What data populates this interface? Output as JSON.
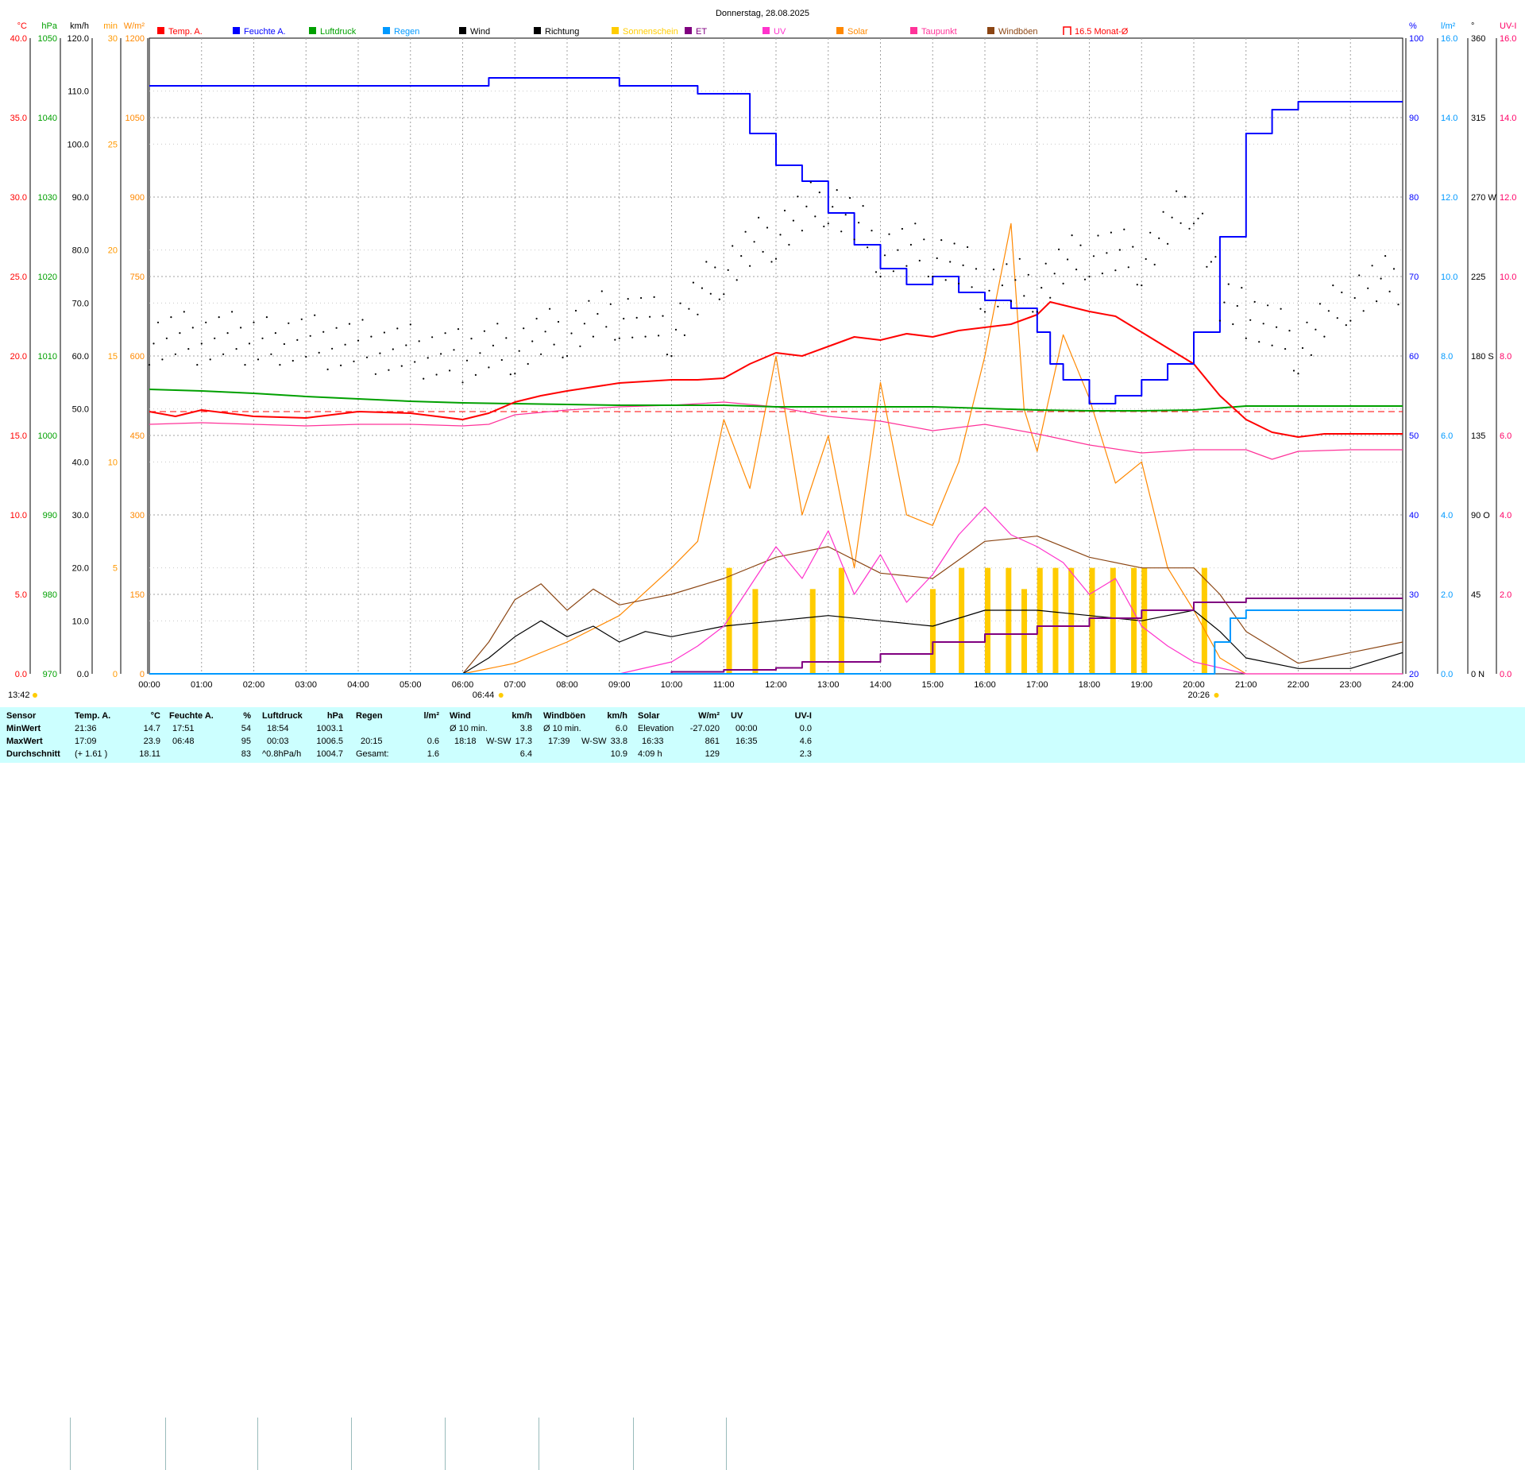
{
  "title": "Donnerstag, 28.08.2025",
  "colors": {
    "temp": "#ff0000",
    "humidity": "#0000ff",
    "pressure": "#00a000",
    "rain": "#0099ff",
    "wind": "#000000",
    "direction": "#000000",
    "sunshine": "#ffcc00",
    "et": "#800080",
    "uv": "#ff33cc",
    "solar": "#ff8800",
    "dewpoint": "#ff3399",
    "gusts": "#8b4513",
    "month_avg": "#ff0000",
    "grid": "#a0a0a0",
    "stats_bg": "#ccffff"
  },
  "legend": [
    {
      "label": "Temp. A.",
      "color": "#ff0000"
    },
    {
      "label": "Feuchte A.",
      "color": "#0000ff"
    },
    {
      "label": "Luftdruck",
      "color": "#00a000"
    },
    {
      "label": "Regen",
      "color": "#0099ff"
    },
    {
      "label": "Wind",
      "color": "#000000"
    },
    {
      "label": "Richtung",
      "color": "#000000"
    },
    {
      "label": "Sonnenschein",
      "color": "#ffcc00"
    },
    {
      "label": "ET",
      "color": "#800080"
    },
    {
      "label": "UV",
      "color": "#ff33cc"
    },
    {
      "label": "Solar",
      "color": "#ff8800"
    },
    {
      "label": "Taupunkt",
      "color": "#ff3399"
    },
    {
      "label": "Windböen",
      "color": "#8b4513"
    },
    {
      "label": "16.5 Monat-Ø",
      "color": "#ff0000"
    }
  ],
  "axes_left": [
    {
      "unit": "°C",
      "color": "#ff0000",
      "ticks": [
        "0.0",
        "5.0",
        "10.0",
        "15.0",
        "20.0",
        "25.0",
        "30.0",
        "35.0",
        "40.0"
      ]
    },
    {
      "unit": "hPa",
      "color": "#00a000",
      "ticks": [
        "970",
        "980",
        "990",
        "1000",
        "1010",
        "1020",
        "1030",
        "1040",
        "1050"
      ]
    },
    {
      "unit": "km/h",
      "color": "#000000",
      "ticks": [
        "0.0",
        "10.0",
        "20.0",
        "30.0",
        "40.0",
        "50.0",
        "60.0",
        "70.0",
        "80.0",
        "90.0",
        "100.0",
        "110.0",
        "120.0"
      ]
    },
    {
      "unit": "min",
      "color": "#ff9900",
      "ticks": [
        "0",
        "5",
        "10",
        "15",
        "20",
        "25",
        "30"
      ]
    },
    {
      "unit": "W/m²",
      "color": "#ff8800",
      "ticks": [
        "0",
        "150",
        "300",
        "450",
        "600",
        "750",
        "900",
        "1050",
        "1200"
      ]
    }
  ],
  "axes_right": [
    {
      "unit": "%",
      "color": "#0000ff",
      "ticks": [
        "20",
        "30",
        "40",
        "50",
        "60",
        "70",
        "80",
        "90",
        "100"
      ]
    },
    {
      "unit": "l/m²",
      "color": "#0099ff",
      "ticks": [
        "0.0",
        "2.0",
        "4.0",
        "6.0",
        "8.0",
        "10.0",
        "12.0",
        "14.0",
        "16.0"
      ]
    },
    {
      "unit": "°",
      "color": "#000000",
      "ticks": [
        "0  N",
        "45",
        "90  O",
        "135",
        "180  S",
        "225",
        "270  W",
        "315",
        "360"
      ]
    },
    {
      "unit": "UV-I",
      "color": "#ff0066",
      "ticks": [
        "0.0",
        "2.0",
        "4.0",
        "6.0",
        "8.0",
        "10.0",
        "12.0",
        "14.0",
        "16.0"
      ]
    }
  ],
  "x_ticks": [
    "00:00",
    "01:00",
    "02:00",
    "03:00",
    "04:00",
    "05:00",
    "06:00",
    "07:00",
    "08:00",
    "09:00",
    "10:00",
    "11:00",
    "12:00",
    "13:00",
    "14:00",
    "15:00",
    "16:00",
    "17:00",
    "18:00",
    "19:00",
    "20:00",
    "21:00",
    "22:00",
    "23:00",
    "24:00"
  ],
  "markers": {
    "sunrise": "06:44",
    "sunset": "20:26",
    "noon": "13:42"
  },
  "chart_data": {
    "type": "line",
    "title": "Donnerstag, 28.08.2025",
    "x_unit": "hour",
    "month_avg_temp": 16.5,
    "series": [
      {
        "name": "Temp. A.",
        "unit": "°C",
        "x": [
          0,
          0.5,
          1,
          2,
          3,
          4,
          5,
          6,
          6.5,
          7,
          7.5,
          8,
          9,
          10,
          10.5,
          11,
          11.5,
          12,
          12.5,
          13,
          13.5,
          14,
          14.5,
          15,
          15.5,
          16,
          16.5,
          17,
          17.25,
          17.5,
          18,
          18.5,
          19,
          19.5,
          20,
          20.5,
          21,
          21.5,
          22,
          22.5,
          23,
          24
        ],
        "y": [
          16.5,
          16.2,
          16.6,
          16.2,
          16.1,
          16.5,
          16.4,
          16.0,
          16.4,
          17.1,
          17.5,
          17.8,
          18.3,
          18.5,
          18.5,
          18.6,
          19.5,
          20.2,
          20.0,
          20.6,
          21.2,
          21.0,
          21.4,
          21.2,
          21.6,
          21.8,
          22.0,
          22.6,
          23.4,
          23.2,
          22.8,
          22.5,
          21.5,
          20.5,
          19.5,
          17.5,
          16.0,
          15.2,
          14.9,
          15.1,
          15.1,
          15.1
        ]
      },
      {
        "name": "Feuchte A.",
        "unit": "%",
        "x": [
          0,
          0.5,
          1,
          2,
          3,
          4,
          5,
          6,
          6.5,
          7,
          8,
          9,
          10,
          10.5,
          11,
          11.5,
          12,
          12.5,
          13,
          13.5,
          14,
          14.5,
          15,
          15.5,
          16,
          16.5,
          17,
          17.25,
          17.5,
          18,
          18.5,
          19,
          19.5,
          20,
          20.5,
          21,
          21.5,
          22,
          23,
          24
        ],
        "y": [
          94,
          94,
          94,
          94,
          94,
          94,
          94,
          94,
          95,
          95,
          95,
          94,
          94,
          93,
          93,
          88,
          84,
          82,
          78,
          74,
          71,
          69,
          70,
          68,
          67,
          66,
          63,
          59,
          57,
          54,
          55,
          57,
          59,
          63,
          75,
          88,
          91,
          92,
          92,
          92
        ]
      },
      {
        "name": "Luftdruck",
        "unit": "hPa",
        "x": [
          0,
          1,
          2,
          3,
          4,
          5,
          6,
          7,
          8,
          9,
          10,
          11,
          12,
          13,
          14,
          15,
          16,
          17,
          18,
          19,
          20,
          21,
          22,
          23,
          24
        ],
        "y": [
          1005.8,
          1005.6,
          1005.3,
          1004.9,
          1004.6,
          1004.3,
          1004.1,
          1004.0,
          1003.9,
          1003.8,
          1003.8,
          1003.8,
          1003.6,
          1003.6,
          1003.6,
          1003.6,
          1003.4,
          1003.2,
          1003.1,
          1003.1,
          1003.2,
          1003.7,
          1003.7,
          1003.7,
          1003.7
        ]
      },
      {
        "name": "Taupunkt",
        "unit": "°C",
        "x": [
          0,
          1,
          2,
          3,
          4,
          5,
          6,
          6.5,
          7,
          8,
          9,
          10,
          11,
          12,
          13,
          14,
          15,
          16,
          17,
          18,
          19,
          20,
          21,
          21.5,
          22,
          23,
          24
        ],
        "y": [
          15.7,
          15.8,
          15.7,
          15.6,
          15.7,
          15.7,
          15.6,
          15.7,
          16.3,
          16.6,
          16.8,
          16.9,
          17.1,
          16.8,
          16.2,
          15.9,
          15.3,
          15.7,
          15.1,
          14.4,
          13.9,
          14.1,
          14.1,
          13.5,
          14.0,
          14.1,
          14.1
        ]
      },
      {
        "name": "Solar",
        "unit": "W/m²",
        "x": [
          0,
          6,
          7,
          8,
          9,
          10,
          10.5,
          11,
          11.5,
          12,
          12.5,
          13,
          13.5,
          14,
          14.5,
          15,
          15.5,
          16,
          16.5,
          16.75,
          17,
          17.5,
          18,
          18.5,
          19,
          19.5,
          20,
          20.5,
          21,
          24
        ],
        "y": [
          0,
          0,
          20,
          60,
          110,
          200,
          250,
          480,
          350,
          600,
          300,
          450,
          200,
          550,
          300,
          280,
          400,
          600,
          850,
          500,
          420,
          640,
          520,
          360,
          400,
          200,
          120,
          30,
          0,
          0
        ]
      },
      {
        "name": "UV",
        "unit": "UV-I",
        "x": [
          0,
          9,
          10,
          10.5,
          11,
          11.5,
          12,
          12.5,
          13,
          13.5,
          14,
          14.5,
          15,
          15.5,
          16,
          16.5,
          17,
          17.5,
          18,
          18.5,
          19,
          19.5,
          20,
          21,
          24
        ],
        "y": [
          0,
          0,
          0.3,
          0.7,
          1.2,
          2.2,
          3.2,
          2.4,
          3.6,
          2.0,
          3.0,
          1.8,
          2.5,
          3.5,
          4.2,
          3.5,
          3.2,
          2.8,
          2.0,
          2.4,
          1.2,
          0.7,
          0.3,
          0,
          0
        ]
      },
      {
        "name": "Wind",
        "unit": "km/h",
        "x": [
          0,
          6,
          6.5,
          7,
          7.5,
          8,
          8.5,
          9,
          9.5,
          10,
          11,
          12,
          13,
          14,
          15,
          16,
          17,
          18,
          19,
          20,
          20.5,
          21,
          22,
          23,
          24
        ],
        "y": [
          0,
          0,
          3,
          7,
          10,
          7,
          9,
          6,
          8,
          7,
          9,
          10,
          11,
          10,
          9,
          12,
          12,
          11,
          10,
          12,
          8,
          3,
          1,
          1,
          4
        ]
      },
      {
        "name": "Windböen",
        "unit": "km/h",
        "x": [
          0,
          6,
          6.5,
          7,
          7.5,
          8,
          8.5,
          9,
          9.5,
          10,
          11,
          12,
          13,
          14,
          15,
          16,
          17,
          18,
          19,
          20,
          20.5,
          21,
          22,
          23,
          24
        ],
        "y": [
          0,
          0,
          6,
          14,
          17,
          12,
          16,
          13,
          14,
          15,
          18,
          22,
          24,
          19,
          18,
          25,
          26,
          22,
          20,
          20,
          15,
          8,
          2,
          4,
          6
        ]
      },
      {
        "name": "Richtung",
        "unit": "°",
        "x": [
          0,
          2.5,
          6,
          7,
          8,
          9,
          10,
          11,
          12,
          13,
          14,
          15,
          16,
          17,
          18,
          19,
          20,
          20.5,
          21,
          22,
          23,
          24
        ],
        "y": [
          190,
          190,
          180,
          185,
          195,
          205,
          195,
          230,
          250,
          270,
          240,
          240,
          220,
          220,
          240,
          235,
          270,
          215,
          205,
          185,
          215,
          225
        ]
      },
      {
        "name": "ET",
        "unit": "l/m²",
        "x": [
          0,
          8,
          10,
          11,
          12,
          12.5,
          14,
          15,
          16,
          17,
          18,
          19,
          20,
          21,
          24
        ],
        "y": [
          0,
          0,
          0.05,
          0.1,
          0.15,
          0.3,
          0.5,
          0.8,
          1.0,
          1.2,
          1.4,
          1.6,
          1.8,
          1.9,
          1.9
        ]
      },
      {
        "name": "Regen",
        "unit": "l/m²",
        "x": [
          0,
          20.2,
          20.4,
          20.7,
          21,
          24
        ],
        "y": [
          0,
          0,
          0.8,
          1.4,
          1.6,
          1.6
        ]
      },
      {
        "name": "Sonnenschein",
        "unit": "min",
        "x": [
          11.05,
          11.55,
          12.65,
          13.2,
          14.95,
          15.5,
          16.0,
          16.4,
          16.7,
          17.0,
          17.3,
          17.6,
          18.0,
          18.4,
          18.8,
          19.0,
          20.15
        ],
        "y": [
          5,
          4,
          4,
          5,
          4,
          5,
          5,
          5,
          4,
          5,
          5,
          5,
          5,
          5,
          5,
          5,
          5
        ]
      }
    ]
  },
  "stats": {
    "headers": {
      "sensor": "Sensor",
      "temp": "Temp. A.",
      "temp_unit": "°C",
      "hum": "Feuchte A.",
      "hum_unit": "%",
      "press": "Luftdruck",
      "press_unit": "hPa",
      "rain": "Regen",
      "rain_unit": "l/m²",
      "wind": "Wind",
      "wind_unit": "km/h",
      "gust": "Windböen",
      "gust_unit": "km/h",
      "solar": "Solar",
      "solar_unit": "W/m²",
      "uv": "UV",
      "uv_unit": "UV-I"
    },
    "rows": [
      {
        "label": "MinWert",
        "temp_time": "21:36",
        "temp_val": "14.7",
        "hum_time": "17:51",
        "hum_val": "54",
        "press_time": "18:54",
        "press_val": "1003.1",
        "rain_time": "",
        "rain_val": "",
        "wind_time": "Ø 10 min.",
        "wind_dir": "",
        "wind_val": "3.8",
        "gust_time": "Ø 10 min.",
        "gust_dir": "",
        "gust_val": "6.0",
        "solar_time": "Elevation",
        "solar_val": "-27.020",
        "uv_time": "00:00",
        "uv_val": "0.0"
      },
      {
        "label": "MaxWert",
        "temp_time": "17:09",
        "temp_val": "23.9",
        "hum_time": "06:48",
        "hum_val": "95",
        "press_time": "00:03",
        "press_val": "1006.5",
        "rain_time": "20:15",
        "rain_val": "0.6",
        "wind_time": "18:18",
        "wind_dir": "W-SW",
        "wind_val": "17.3",
        "gust_time": "17:39",
        "gust_dir": "W-SW",
        "gust_val": "33.8",
        "solar_time": "16:33",
        "solar_val": "861",
        "uv_time": "16:35",
        "uv_val": "4.6"
      },
      {
        "label": "Durchschnitt",
        "temp_time": "(+ 1.61 )",
        "temp_val": "18.11",
        "hum_time": "",
        "hum_val": "83",
        "press_time": "^0.8hPa/h",
        "press_val": "1004.7",
        "rain_time": "Gesamt:",
        "rain_val": "1.6",
        "wind_time": "",
        "wind_dir": "",
        "wind_val": "6.4",
        "gust_time": "",
        "gust_dir": "",
        "gust_val": "10.9",
        "solar_time": "4:09 h",
        "solar_val": "129",
        "uv_time": "",
        "uv_val": "2.3"
      }
    ]
  }
}
